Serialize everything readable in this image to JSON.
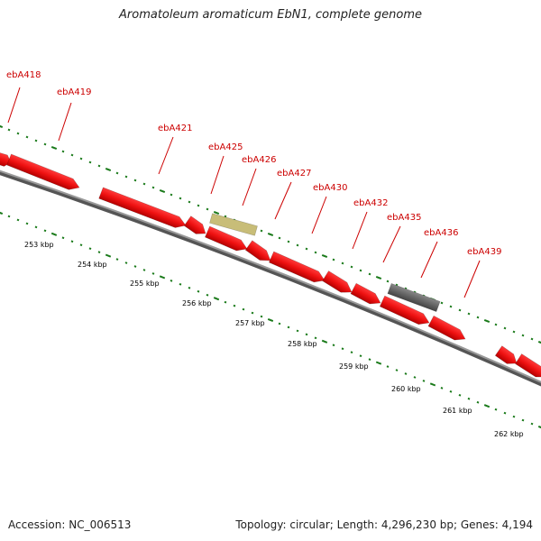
{
  "title": "Aromatoleum aromaticum EbN1, complete genome",
  "footer": {
    "accession": "Accession: NC_006513",
    "summary": "Topology: circular; Length: 4,296,230 bp; Genes: 4,194"
  },
  "colors": {
    "gene": "#ee1111",
    "gene_dark": "#cc0000",
    "highlight": "#c8bd78",
    "gray_feature": "#666666",
    "backbone": "#888888",
    "tick": "#1a7a1a"
  },
  "genes": [
    {
      "label": "ebA418"
    },
    {
      "label": "ebA419"
    },
    {
      "label": "ebA421"
    },
    {
      "label": "ebA425"
    },
    {
      "label": "ebA426"
    },
    {
      "label": "ebA427"
    },
    {
      "label": "ebA430"
    },
    {
      "label": "ebA432"
    },
    {
      "label": "ebA435"
    },
    {
      "label": "ebA436"
    },
    {
      "label": "ebA439"
    }
  ],
  "scale": [
    {
      "label": "253 kbp"
    },
    {
      "label": "254 kbp"
    },
    {
      "label": "255 kbp"
    },
    {
      "label": "256 kbp"
    },
    {
      "label": "257 kbp"
    },
    {
      "label": "258 kbp"
    },
    {
      "label": "259 kbp"
    },
    {
      "label": "260 kbp"
    },
    {
      "label": "261 kbp"
    },
    {
      "label": "262 kbp"
    }
  ]
}
